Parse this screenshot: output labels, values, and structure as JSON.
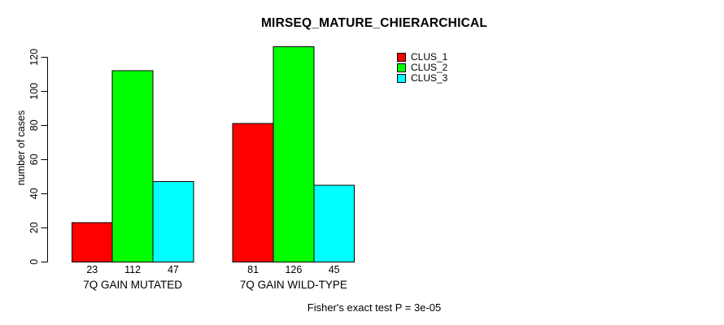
{
  "chart_data": {
    "type": "bar",
    "title": "MIRSEQ_MATURE_CHIERARCHICAL",
    "categories": [
      "7Q GAIN MUTATED",
      "7Q GAIN WILD-TYPE"
    ],
    "series": [
      {
        "name": "CLUS_1",
        "color": "#ff0000",
        "values": [
          23,
          81
        ]
      },
      {
        "name": "CLUS_2",
        "color": "#00ff00",
        "values": [
          112,
          126
        ]
      },
      {
        "name": "CLUS_3",
        "color": "#00ffff",
        "values": [
          47,
          45
        ]
      }
    ],
    "ylabel": "number of cases",
    "xlabel": "",
    "yticks": [
      0,
      20,
      40,
      60,
      80,
      100,
      120
    ],
    "ylim": [
      0,
      126
    ],
    "grid": false,
    "legend_position": "top-right",
    "bar_value_labels_shown": true,
    "annotation": "Fisher's exact test P = 3e-05",
    "background": "#ffffff",
    "axis_color": "#000000"
  }
}
